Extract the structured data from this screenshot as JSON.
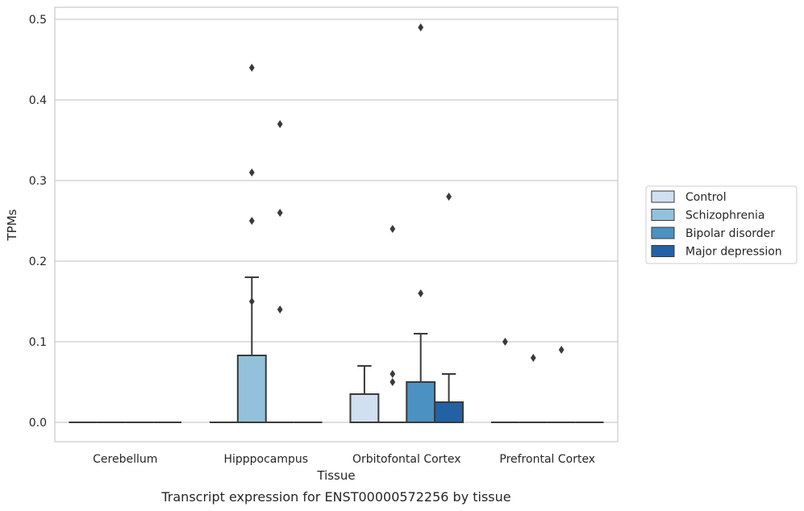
{
  "chart_data": {
    "type": "box",
    "title": "",
    "xlabel": "Tissue",
    "ylabel": "TPMs",
    "caption": "Transcript expression for ENST00000572256 by tissue",
    "ylim": [
      -0.023,
      0.515
    ],
    "yticks": [
      0.0,
      0.1,
      0.2,
      0.3,
      0.4,
      0.5
    ],
    "ytick_labels": [
      "0.0",
      "0.1",
      "0.2",
      "0.3",
      "0.4",
      "0.5"
    ],
    "grid": "horizontal",
    "legend_position": "right",
    "categories": [
      "Cerebellum",
      "Hipppocampus",
      "Orbitofontal Cortex",
      "Prefrontal Cortex"
    ],
    "series": [
      {
        "name": "Control",
        "color": "#d0e0f0",
        "boxes": [
          {
            "category": "Cerebellum",
            "q1": 0,
            "median": 0,
            "q3": 0,
            "whisker_low": 0,
            "whisker_high": 0,
            "outliers": []
          },
          {
            "category": "Hipppocampus",
            "q1": 0,
            "median": 0,
            "q3": 0,
            "whisker_low": 0,
            "whisker_high": 0,
            "outliers": []
          },
          {
            "category": "Orbitofontal Cortex",
            "q1": 0,
            "median": 0,
            "q3": 0.035,
            "whisker_low": 0,
            "whisker_high": 0.07,
            "outliers": []
          },
          {
            "category": "Prefrontal Cortex",
            "q1": 0,
            "median": 0,
            "q3": 0,
            "whisker_low": 0,
            "whisker_high": 0,
            "outliers": [
              0.1
            ]
          }
        ]
      },
      {
        "name": "Schizophrenia",
        "color": "#93c1dc",
        "boxes": [
          {
            "category": "Cerebellum",
            "q1": 0,
            "median": 0,
            "q3": 0,
            "whisker_low": 0,
            "whisker_high": 0,
            "outliers": []
          },
          {
            "category": "Hipppocampus",
            "q1": 0,
            "median": 0,
            "q3": 0.083,
            "whisker_low": 0,
            "whisker_high": 0.18,
            "outliers": [
              0.44,
              0.31,
              0.25,
              0.15
            ]
          },
          {
            "category": "Orbitofontal Cortex",
            "q1": 0,
            "median": 0,
            "q3": 0,
            "whisker_low": 0,
            "whisker_high": 0,
            "outliers": [
              0.24,
              0.06,
              0.05
            ]
          },
          {
            "category": "Prefrontal Cortex",
            "q1": 0,
            "median": 0,
            "q3": 0,
            "whisker_low": 0,
            "whisker_high": 0,
            "outliers": [
              0.08
            ]
          }
        ]
      },
      {
        "name": "Bipolar disorder",
        "color": "#4b91c2",
        "boxes": [
          {
            "category": "Cerebellum",
            "q1": 0,
            "median": 0,
            "q3": 0,
            "whisker_low": 0,
            "whisker_high": 0,
            "outliers": []
          },
          {
            "category": "Hipppocampus",
            "q1": 0,
            "median": 0,
            "q3": 0,
            "whisker_low": 0,
            "whisker_high": 0,
            "outliers": [
              0.37,
              0.26,
              0.14
            ]
          },
          {
            "category": "Orbitofontal Cortex",
            "q1": 0,
            "median": 0,
            "q3": 0.05,
            "whisker_low": 0,
            "whisker_high": 0.11,
            "outliers": [
              0.49,
              0.16
            ]
          },
          {
            "category": "Prefrontal Cortex",
            "q1": 0,
            "median": 0,
            "q3": 0,
            "whisker_low": 0,
            "whisker_high": 0,
            "outliers": [
              0.09
            ]
          }
        ]
      },
      {
        "name": "Major depression",
        "color": "#2361a5",
        "boxes": [
          {
            "category": "Cerebellum",
            "q1": 0,
            "median": 0,
            "q3": 0,
            "whisker_low": 0,
            "whisker_high": 0,
            "outliers": []
          },
          {
            "category": "Hipppocampus",
            "q1": 0,
            "median": 0,
            "q3": 0,
            "whisker_low": 0,
            "whisker_high": 0,
            "outliers": []
          },
          {
            "category": "Orbitofontal Cortex",
            "q1": 0,
            "median": 0,
            "q3": 0.025,
            "whisker_low": 0,
            "whisker_high": 0.06,
            "outliers": [
              0.28
            ]
          },
          {
            "category": "Prefrontal Cortex",
            "q1": 0,
            "median": 0,
            "q3": 0,
            "whisker_low": 0,
            "whisker_high": 0,
            "outliers": []
          }
        ]
      }
    ]
  }
}
